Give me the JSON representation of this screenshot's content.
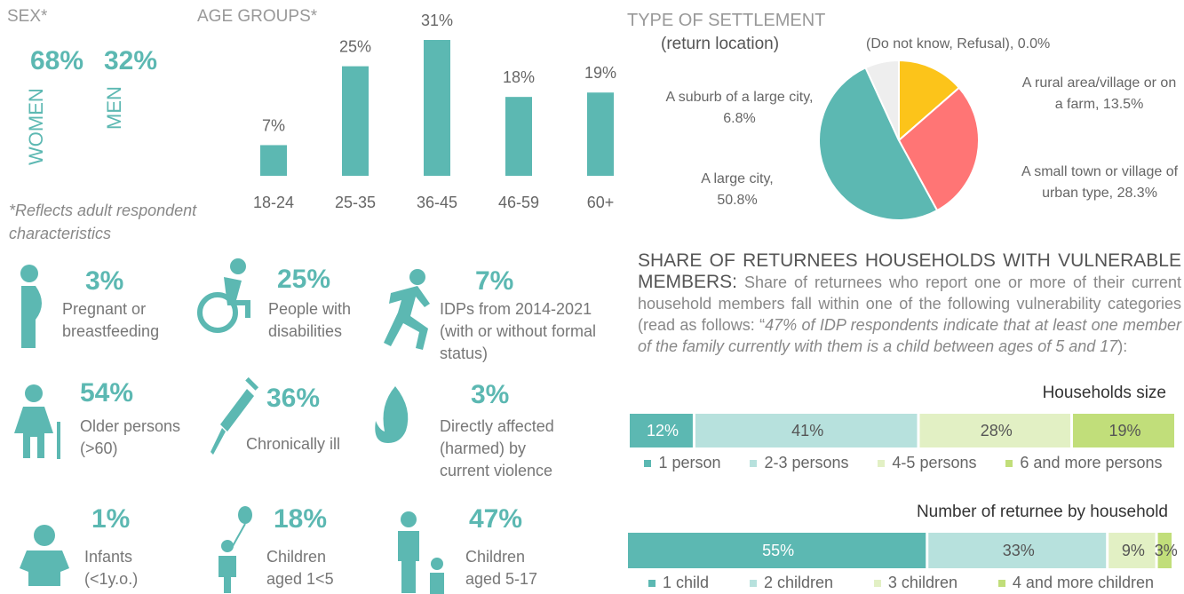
{
  "sex": {
    "title": "SEX*",
    "women_value": "68%",
    "women_label": "WOMEN",
    "men_value": "32%",
    "men_label": "MEN"
  },
  "note": "*Reflects adult respondent characteristics",
  "chart_data": [
    {
      "type": "bar",
      "title": "AGE GROUPS*",
      "categories": [
        "18-24",
        "25-35",
        "36-45",
        "46-59",
        "60+"
      ],
      "values": [
        7,
        25,
        31,
        18,
        19
      ],
      "value_labels": [
        "7%",
        "25%",
        "31%",
        "18%",
        "19%"
      ],
      "color": "#5cb8b2"
    },
    {
      "type": "pie",
      "title": "TYPE OF SETTLEMENT",
      "subtitle": "(return location)",
      "categories": [
        "A rural area/village or on a farm, 13.5%",
        "A small town or village of urban type, 28.3%",
        "A large city, 50.8%",
        "A suburb of a large city, 6.8%",
        "(Do not know, Refusal), 0.0%"
      ],
      "values": [
        13.5,
        28.3,
        50.8,
        6.8,
        0.0
      ],
      "colors": [
        "#fcc41a",
        "#ff7575",
        "#5cb8b2",
        "#eeeeee",
        "#cccccc"
      ]
    },
    {
      "type": "bar",
      "orientation": "horizontal",
      "stacked": true,
      "title": "Households size",
      "categories": [
        "1 person",
        "2-3 persons",
        "4-5 persons",
        "6 and more persons"
      ],
      "values": [
        12,
        41,
        28,
        19
      ],
      "value_labels": [
        "12%",
        "41%",
        "28%",
        "19%"
      ],
      "colors": [
        "#5cb8b2",
        "#b7e1dd",
        "#e2f0c4",
        "#c1de7a"
      ]
    },
    {
      "type": "bar",
      "orientation": "horizontal",
      "stacked": true,
      "title": "Number of returnee by household",
      "categories": [
        "1 child",
        "2 children",
        "3 children",
        "4 and more children"
      ],
      "values": [
        55,
        33,
        9,
        3
      ],
      "value_labels": [
        "55%",
        "33%",
        "9%",
        "3%"
      ],
      "colors": [
        "#5cb8b2",
        "#b7e1dd",
        "#e2f0c4",
        "#c1de7a"
      ]
    }
  ],
  "vulnerable": {
    "title": "SHARE OF RETURNEES HOUSEHOLDS WITH VULNERABLE MEMBERS:",
    "description": "Share of returnees who report one or more of their current household members fall within one of the following vulnerability categories (read as follows: “",
    "example": "47% of IDP respondents indicate that at least one member of the family currently with them is a child between ages of 5 and 17",
    "description_end": "):",
    "items": [
      {
        "value": "3%",
        "label": "Pregnant or breastfeeding"
      },
      {
        "value": "25%",
        "label": "People with disabilities"
      },
      {
        "value": "7%",
        "label": "IDPs from 2014-2021 (with or without formal status)"
      },
      {
        "value": "54%",
        "label": "Older persons (>60)"
      },
      {
        "value": "36%",
        "label": "Chronically ill"
      },
      {
        "value": "3%",
        "label": "Directly affected (harmed) by current violence"
      },
      {
        "value": "1%",
        "label": "Infants (<1y.o.)"
      },
      {
        "value": "18%",
        "label": "Children aged 1<5"
      },
      {
        "value": "47%",
        "label": "Children aged 5-17"
      }
    ]
  }
}
